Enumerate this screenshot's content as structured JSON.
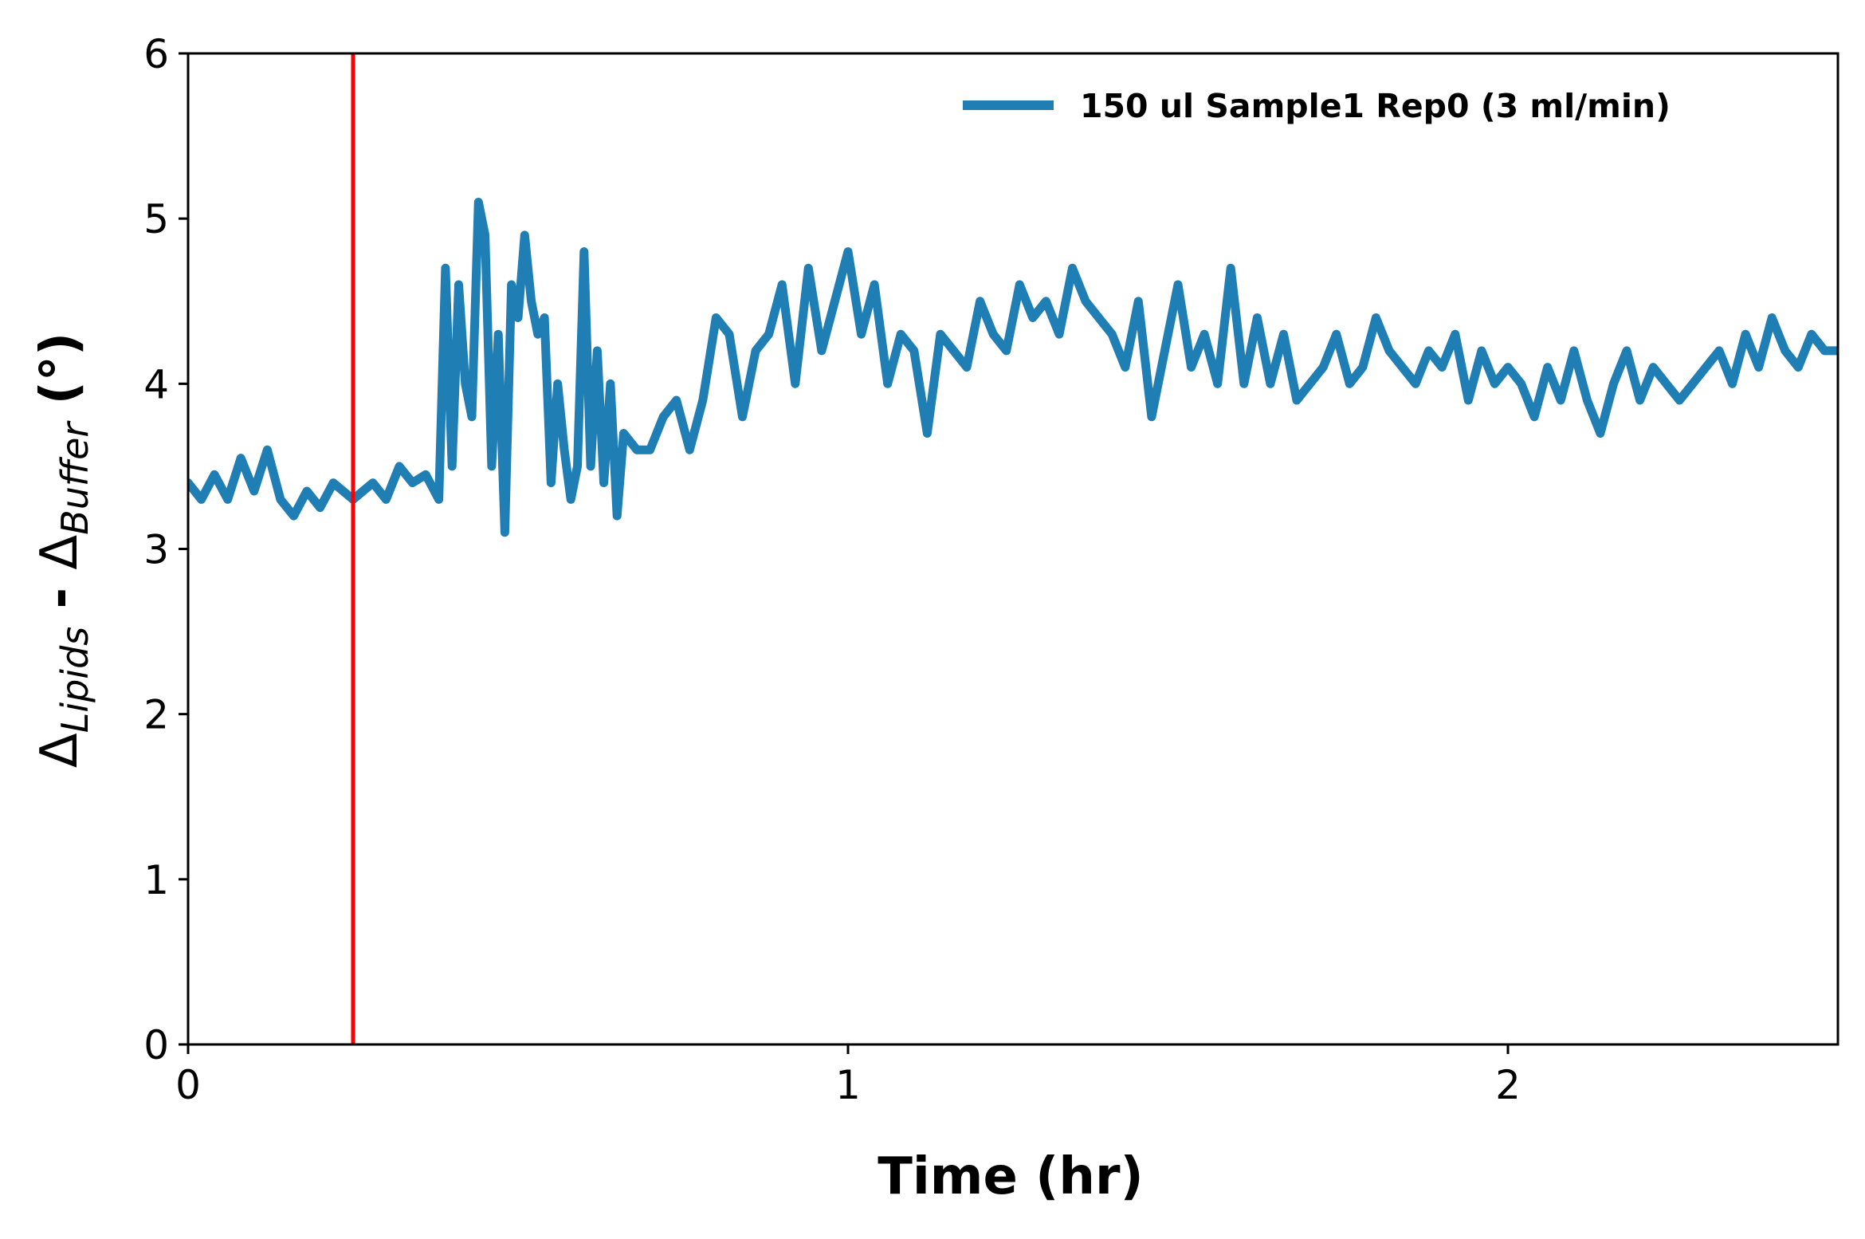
{
  "chart_data": {
    "type": "line",
    "xlabel": "Time (hr)",
    "ylabel": {
      "delta1": "Δ",
      "sub1": "Lipids",
      "minus": " - ",
      "delta2": "Δ",
      "sub2": "Buffer",
      "unit": " (°)"
    },
    "xlim": [
      0,
      2.5
    ],
    "ylim": [
      0,
      6
    ],
    "xticks": [
      "0",
      "1",
      "2"
    ],
    "xtick_values": [
      0,
      1,
      2
    ],
    "yticks": [
      "0",
      "1",
      "2",
      "3",
      "4",
      "5",
      "6"
    ],
    "ytick_values": [
      0,
      1,
      2,
      3,
      4,
      5,
      6
    ],
    "grid": false,
    "legend_position": "top-right",
    "vline": {
      "x": 0.25,
      "color": "#ff0000"
    },
    "series": [
      {
        "name": "150 ul Sample1 Rep0 (3 ml/min)",
        "color": "#1f7fb4",
        "x": [
          0,
          0.02,
          0.04,
          0.06,
          0.08,
          0.1,
          0.12,
          0.14,
          0.16,
          0.18,
          0.2,
          0.22,
          0.25,
          0.28,
          0.3,
          0.32,
          0.34,
          0.36,
          0.38,
          0.39,
          0.4,
          0.41,
          0.42,
          0.43,
          0.44,
          0.45,
          0.46,
          0.47,
          0.48,
          0.49,
          0.5,
          0.51,
          0.52,
          0.53,
          0.54,
          0.55,
          0.56,
          0.57,
          0.58,
          0.59,
          0.6,
          0.61,
          0.62,
          0.63,
          0.64,
          0.65,
          0.66,
          0.68,
          0.7,
          0.72,
          0.74,
          0.76,
          0.78,
          0.8,
          0.82,
          0.84,
          0.86,
          0.88,
          0.9,
          0.92,
          0.94,
          0.96,
          0.98,
          1.0,
          1.02,
          1.04,
          1.06,
          1.08,
          1.1,
          1.12,
          1.14,
          1.16,
          1.18,
          1.2,
          1.22,
          1.24,
          1.26,
          1.28,
          1.3,
          1.32,
          1.34,
          1.36,
          1.38,
          1.4,
          1.42,
          1.44,
          1.46,
          1.48,
          1.5,
          1.52,
          1.54,
          1.56,
          1.58,
          1.6,
          1.62,
          1.64,
          1.66,
          1.68,
          1.7,
          1.72,
          1.74,
          1.76,
          1.78,
          1.8,
          1.82,
          1.84,
          1.86,
          1.88,
          1.9,
          1.92,
          1.94,
          1.96,
          1.98,
          2.0,
          2.02,
          2.04,
          2.06,
          2.08,
          2.1,
          2.12,
          2.14,
          2.16,
          2.18,
          2.2,
          2.22,
          2.24,
          2.26,
          2.28,
          2.3,
          2.32,
          2.34,
          2.36,
          2.38,
          2.4,
          2.42,
          2.44,
          2.46,
          2.48,
          2.5
        ],
        "y": [
          3.4,
          3.3,
          3.45,
          3.3,
          3.55,
          3.35,
          3.6,
          3.3,
          3.2,
          3.35,
          3.25,
          3.4,
          3.3,
          3.4,
          3.3,
          3.5,
          3.4,
          3.45,
          3.3,
          4.7,
          3.5,
          4.6,
          4.0,
          3.8,
          5.1,
          4.9,
          3.5,
          4.3,
          3.1,
          4.6,
          4.4,
          4.9,
          4.5,
          4.3,
          4.4,
          3.4,
          4.0,
          3.6,
          3.3,
          3.5,
          4.8,
          3.5,
          4.2,
          3.4,
          4.0,
          3.2,
          3.7,
          3.6,
          3.6,
          3.8,
          3.9,
          3.6,
          3.9,
          4.4,
          4.3,
          3.8,
          4.2,
          4.3,
          4.6,
          4.0,
          4.7,
          4.2,
          4.5,
          4.8,
          4.3,
          4.6,
          4.0,
          4.3,
          4.2,
          3.7,
          4.3,
          4.2,
          4.1,
          4.5,
          4.3,
          4.2,
          4.6,
          4.4,
          4.5,
          4.3,
          4.7,
          4.5,
          4.4,
          4.3,
          4.1,
          4.5,
          3.8,
          4.2,
          4.6,
          4.1,
          4.3,
          4.0,
          4.7,
          4.0,
          4.4,
          4.0,
          4.3,
          3.9,
          4.0,
          4.1,
          4.3,
          4.0,
          4.1,
          4.4,
          4.2,
          4.1,
          4.0,
          4.2,
          4.1,
          4.3,
          3.9,
          4.2,
          4.0,
          4.1,
          4.0,
          3.8,
          4.1,
          3.9,
          4.2,
          3.9,
          3.7,
          4.0,
          4.2,
          3.9,
          4.1,
          4.0,
          3.9,
          4.0,
          4.1,
          4.2,
          4.0,
          4.3,
          4.1,
          4.4,
          4.2,
          4.1,
          4.3,
          4.2,
          4.2
        ]
      }
    ]
  }
}
